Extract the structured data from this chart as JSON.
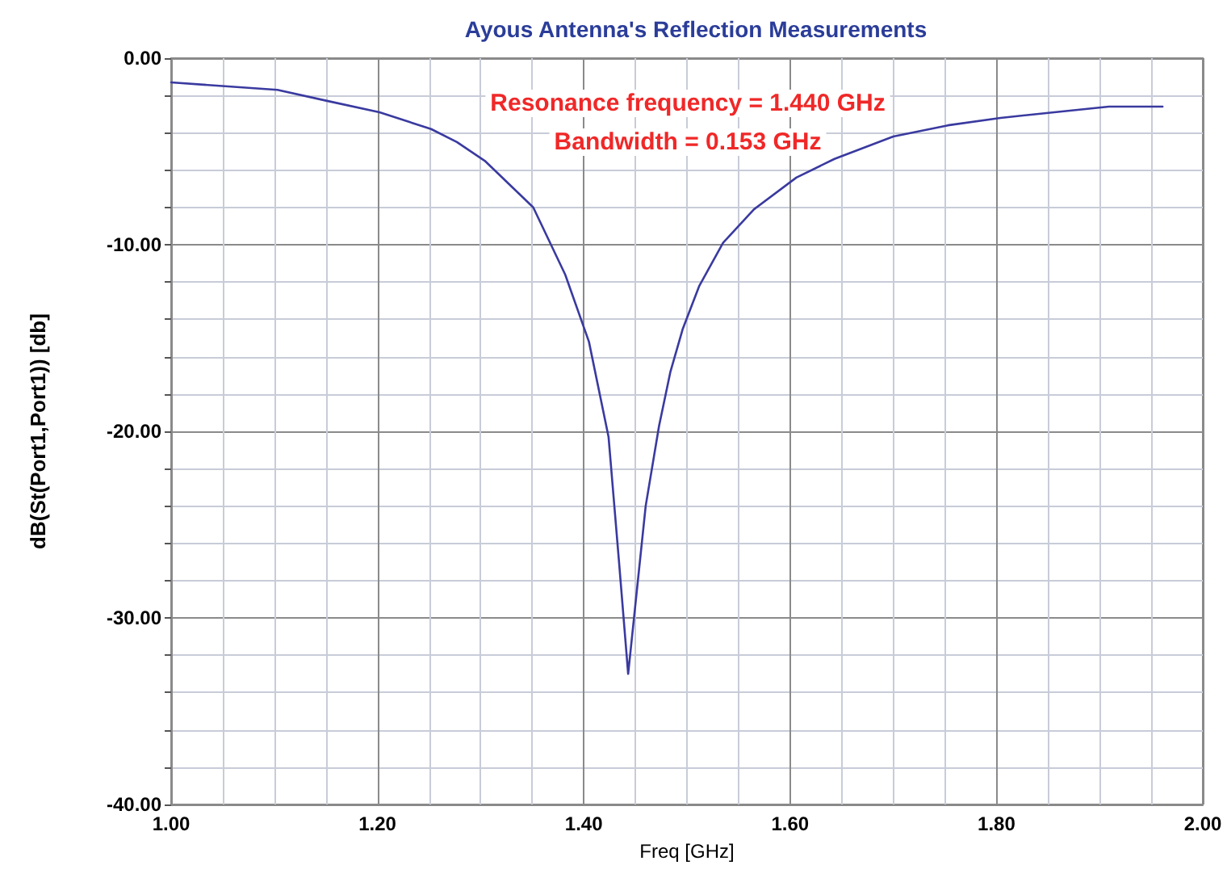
{
  "chart_data": {
    "type": "line",
    "title": "Ayous Antenna's Reflection Measurements",
    "xlabel": "Freq [GHz]",
    "ylabel": "dB(St(Port1,Port1)) [db]",
    "annotations": [
      "Resonance frequency = 1.440 GHz",
      "Bandwidth = 0.153 GHz"
    ],
    "x": [
      1.0,
      1.103,
      1.152,
      1.202,
      1.252,
      1.277,
      1.304,
      1.351,
      1.382,
      1.405,
      1.424,
      1.434,
      1.443,
      1.46,
      1.473,
      1.484,
      1.496,
      1.512,
      1.535,
      1.565,
      1.606,
      1.643,
      1.7,
      1.753,
      1.804,
      1.856,
      1.909,
      1.961
    ],
    "series": [
      {
        "color": "#3a3aa0",
        "values": [
          -1.3,
          -1.7,
          -2.3,
          -2.9,
          -3.8,
          -4.5,
          -5.5,
          -8.0,
          -11.6,
          -15.2,
          -20.3,
          -26.9,
          -33.0,
          -24.0,
          -19.7,
          -16.8,
          -14.5,
          -12.2,
          -9.9,
          -8.1,
          -6.4,
          -5.4,
          -4.2,
          -3.6,
          -3.2,
          -2.9,
          -2.6,
          -2.6
        ]
      }
    ],
    "xlim": [
      1.0,
      2.0
    ],
    "ylim": [
      -40,
      0
    ],
    "xticks": [
      {
        "value": 1.0,
        "label": "1.00"
      },
      {
        "value": 1.05,
        "label": null
      },
      {
        "value": 1.1,
        "label": null
      },
      {
        "value": 1.15,
        "label": null
      },
      {
        "value": 1.2,
        "label": "1.20"
      },
      {
        "value": 1.25,
        "label": null
      },
      {
        "value": 1.3,
        "label": null
      },
      {
        "value": 1.35,
        "label": null
      },
      {
        "value": 1.4,
        "label": "1.40"
      },
      {
        "value": 1.45,
        "label": null
      },
      {
        "value": 1.5,
        "label": null
      },
      {
        "value": 1.55,
        "label": null
      },
      {
        "value": 1.6,
        "label": "1.60"
      },
      {
        "value": 1.65,
        "label": null
      },
      {
        "value": 1.7,
        "label": null
      },
      {
        "value": 1.75,
        "label": null
      },
      {
        "value": 1.8,
        "label": "1.80"
      },
      {
        "value": 1.85,
        "label": null
      },
      {
        "value": 1.9,
        "label": null
      },
      {
        "value": 1.95,
        "label": null
      },
      {
        "value": 2.0,
        "label": "2.00"
      }
    ],
    "yticks": [
      {
        "value": -40,
        "label": "-40.00"
      },
      {
        "value": -38,
        "label": null
      },
      {
        "value": -36,
        "label": null
      },
      {
        "value": -34,
        "label": null
      },
      {
        "value": -32,
        "label": null
      },
      {
        "value": -30,
        "label": "-30.00"
      },
      {
        "value": -28,
        "label": null
      },
      {
        "value": -26,
        "label": null
      },
      {
        "value": -24,
        "label": null
      },
      {
        "value": -22,
        "label": null
      },
      {
        "value": -20,
        "label": "-20.00"
      },
      {
        "value": -18,
        "label": null
      },
      {
        "value": -16,
        "label": null
      },
      {
        "value": -14,
        "label": null
      },
      {
        "value": -12,
        "label": null
      },
      {
        "value": -10,
        "label": "-10.00"
      },
      {
        "value": -8,
        "label": null
      },
      {
        "value": -6,
        "label": null
      },
      {
        "value": -4,
        "label": null
      },
      {
        "value": -2,
        "label": null
      },
      {
        "value": 0,
        "label": "0.00"
      }
    ],
    "grid": true,
    "marker": "none",
    "line_style": "solid"
  }
}
